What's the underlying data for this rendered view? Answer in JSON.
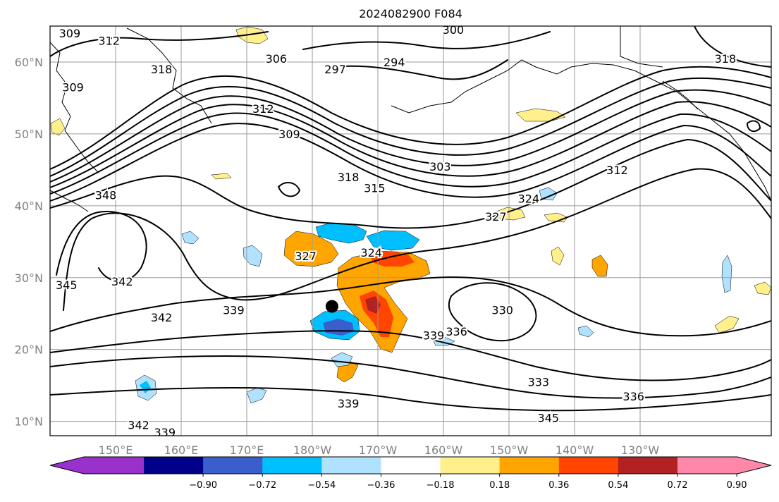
{
  "title": "2024082900 F084",
  "map": {
    "lon_range": [
      140,
      -110
    ],
    "lat_range": [
      8,
      65
    ],
    "lat_ticks": [
      {
        "value": 60,
        "label": "60°N"
      },
      {
        "value": 50,
        "label": "50°N"
      },
      {
        "value": 40,
        "label": "40°N"
      },
      {
        "value": 30,
        "label": "30°N"
      },
      {
        "value": 20,
        "label": "20°N"
      },
      {
        "value": 10,
        "label": "10°N"
      }
    ],
    "lon_ticks": [
      {
        "value": 150,
        "label": "150°E"
      },
      {
        "value": 160,
        "label": "160°E"
      },
      {
        "value": 170,
        "label": "170°E"
      },
      {
        "value": 180,
        "label": "180°W"
      },
      {
        "value": -170,
        "label": "170°W"
      },
      {
        "value": -160,
        "label": "160°W"
      },
      {
        "value": -150,
        "label": "150°W"
      },
      {
        "value": -140,
        "label": "140°W"
      },
      {
        "value": -130,
        "label": "130°W"
      }
    ],
    "storm_center": {
      "lon": -177,
      "lat": 26
    },
    "contour_labels": [
      {
        "text": "309",
        "lon": 143,
        "lat": 64
      },
      {
        "text": "312",
        "lon": 149,
        "lat": 63
      },
      {
        "text": "309",
        "lon": 143.5,
        "lat": 56.5
      },
      {
        "text": "318",
        "lon": 157,
        "lat": 59
      },
      {
        "text": "306",
        "lon": 174.5,
        "lat": 60.5
      },
      {
        "text": "297",
        "lon": -176.5,
        "lat": 59
      },
      {
        "text": "294",
        "lon": -167.5,
        "lat": 60
      },
      {
        "text": "300",
        "lon": -158.5,
        "lat": 64.5
      },
      {
        "text": "318",
        "lon": -117,
        "lat": 60.5
      },
      {
        "text": "312",
        "lon": 172.5,
        "lat": 53.5
      },
      {
        "text": "309",
        "lon": 176.5,
        "lat": 50
      },
      {
        "text": "303",
        "lon": -160.5,
        "lat": 45.5
      },
      {
        "text": "312",
        "lon": -133.5,
        "lat": 45
      },
      {
        "text": "318",
        "lon": -174.5,
        "lat": 44
      },
      {
        "text": "315",
        "lon": -170.5,
        "lat": 42.5
      },
      {
        "text": "324",
        "lon": -147,
        "lat": 41
      },
      {
        "text": "327",
        "lon": -152,
        "lat": 38.5
      },
      {
        "text": "348",
        "lon": 148.5,
        "lat": 41.5
      },
      {
        "text": "327",
        "lon": -181,
        "lat": 33
      },
      {
        "text": "324",
        "lon": -171,
        "lat": 33.5
      },
      {
        "text": "345",
        "lon": 142.5,
        "lat": 29
      },
      {
        "text": "342",
        "lon": 151,
        "lat": 29.5
      },
      {
        "text": "342",
        "lon": 157,
        "lat": 24.5
      },
      {
        "text": "339",
        "lon": 168,
        "lat": 25.5
      },
      {
        "text": "330",
        "lon": -151,
        "lat": 25.5
      },
      {
        "text": "339",
        "lon": -161.5,
        "lat": 22
      },
      {
        "text": "336",
        "lon": -158,
        "lat": 22.5
      },
      {
        "text": "333",
        "lon": -145.5,
        "lat": 15.5
      },
      {
        "text": "336",
        "lon": -131,
        "lat": 13.5
      },
      {
        "text": "345",
        "lon": -144,
        "lat": 10.5
      },
      {
        "text": "339",
        "lon": -174.5,
        "lat": 12.5
      },
      {
        "text": "342",
        "lon": 153.5,
        "lat": 9.5
      },
      {
        "text": "339",
        "lon": 157.5,
        "lat": 8.5
      }
    ]
  },
  "colorbar": {
    "ticks": [
      "−0.90",
      "−0.72",
      "−0.54",
      "−0.36",
      "−0.18",
      "0.18",
      "0.36",
      "0.54",
      "0.72",
      "0.90"
    ],
    "colors": [
      "#9932cc",
      "#00008b",
      "#3a5fcd",
      "#00bfff",
      "#b0e2ff",
      "#ffffff",
      "#fff08c",
      "#ffa500",
      "#ff4500",
      "#b22222",
      "#ff88a8"
    ]
  }
}
